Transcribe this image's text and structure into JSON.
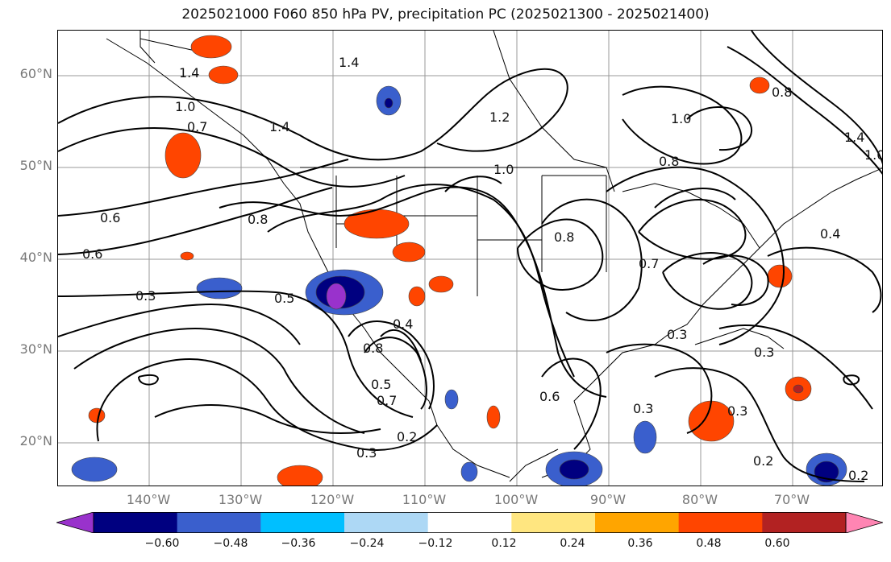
{
  "title": "2025021000 F060 850 hPa PV, precipitation PC (2025021300 - 2025021400)",
  "map": {
    "lat_labels": [
      "60°N",
      "50°N",
      "40°N",
      "30°N",
      "20°N"
    ],
    "lon_labels": [
      "140°W",
      "130°W",
      "120°W",
      "110°W",
      "100°W",
      "90°W",
      "80°W",
      "70°W"
    ],
    "contour_labels": [
      "1.4",
      "1.4",
      "1.4",
      "1.0",
      "0.7",
      "1.2",
      "1.0",
      "0.8",
      "0.8",
      "1.0",
      "0.6",
      "0.6",
      "0.8",
      "0.3",
      "0.5",
      "0.4",
      "0.8",
      "0.7",
      "0.3",
      "0.2",
      "0.3",
      "0.6",
      "0.3",
      "0.3",
      "0.3",
      "0.2",
      "0.2",
      "0.4",
      "0.8",
      "1.4",
      "1.0",
      "0.7",
      "0.5"
    ]
  },
  "colorbar": {
    "ticks": [
      "−0.60",
      "−0.48",
      "−0.36",
      "−0.24",
      "−0.12",
      "0.12",
      "0.24",
      "0.36",
      "0.48",
      "0.60"
    ],
    "colors": [
      "#9932cc",
      "#000080",
      "#3a5fcd",
      "#00bfff",
      "#add8f5",
      "#ffffff",
      "#ffe680",
      "#ffa500",
      "#ff4500",
      "#b22222",
      "#ff85b3"
    ]
  }
}
